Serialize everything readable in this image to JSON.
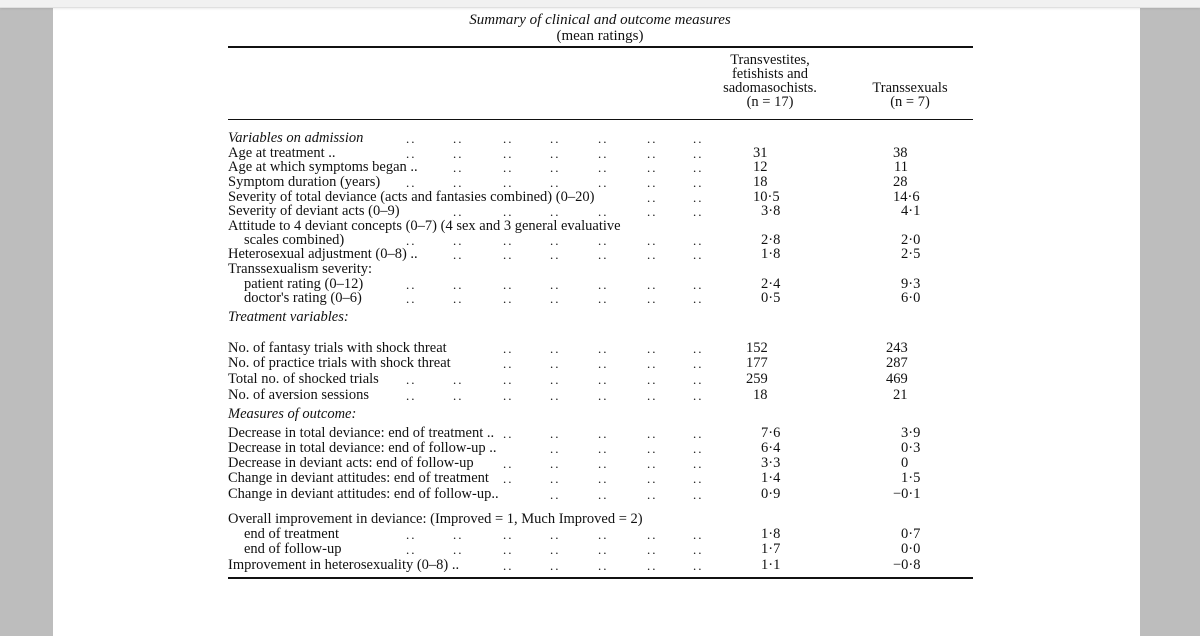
{
  "table": {
    "title": "Summary of clinical and outcome measures",
    "subtitle": "(mean ratings)",
    "columns": [
      {
        "lines": [
          "Transvestites,",
          "fetishists and",
          "sadomasochists.",
          "(n = 17)"
        ]
      },
      {
        "lines": [
          "Transsexuals",
          "(n = 7)"
        ]
      }
    ],
    "rows": [
      {
        "label": "Variables on admission",
        "style": "section",
        "values": [
          "",
          ""
        ]
      },
      {
        "label": "Age at treatment ..",
        "values": [
          "31",
          "38"
        ]
      },
      {
        "label": "Age at which symptoms began ..",
        "values": [
          "12",
          "11"
        ]
      },
      {
        "label": "Symptom duration (years)",
        "values": [
          "18",
          "28"
        ]
      },
      {
        "label": "Severity of total deviance (acts and fantasies combined) (0–20)",
        "values": [
          "10·5",
          "14·6"
        ]
      },
      {
        "label": "Severity of deviant acts (0–9)",
        "values": [
          "3·8",
          "4·1"
        ]
      },
      {
        "label": "Attitude to 4 deviant concepts (0–7) (4 sex and 3 general evaluative",
        "nodots": true,
        "values": [
          "",
          ""
        ]
      },
      {
        "label": "scales combined)",
        "style": "indent",
        "values": [
          "2·8",
          "2·0"
        ]
      },
      {
        "label": "Heterosexual adjustment (0–8) ..",
        "values": [
          "1·8",
          "2·5"
        ]
      },
      {
        "label": "Transsexualism severity:",
        "nodots": true,
        "values": [
          "",
          ""
        ]
      },
      {
        "label": "patient rating (0–12)",
        "style": "indent",
        "values": [
          "2·4",
          "9·3"
        ]
      },
      {
        "label": "doctor's rating (0–6)",
        "style": "indent",
        "values": [
          "0·5",
          "6·0"
        ]
      },
      {
        "label": "Treatment variables:",
        "style": "section",
        "nodots": true,
        "values": [
          "",
          ""
        ]
      },
      {
        "label": "No. of fantasy trials with shock threat",
        "values": [
          "152",
          "243"
        ]
      },
      {
        "label": "No. of practice trials with shock threat",
        "values": [
          "177",
          "287"
        ]
      },
      {
        "label": "Total no. of shocked trials",
        "values": [
          "259",
          "469"
        ]
      },
      {
        "label": "No. of aversion sessions",
        "values": [
          "18",
          "21"
        ]
      },
      {
        "label": "Measures of outcome:",
        "style": "section",
        "nodots": true,
        "values": [
          "",
          ""
        ]
      },
      {
        "label": "Decrease in total deviance: end of treatment ..",
        "values": [
          "7·6",
          "3·9"
        ]
      },
      {
        "label": "Decrease in total deviance: end of follow-up ..",
        "values": [
          "6·4",
          "0·3"
        ]
      },
      {
        "label": "Decrease in deviant acts: end of follow-up",
        "values": [
          "3·3",
          "0"
        ]
      },
      {
        "label": "Change in deviant attitudes: end of treatment",
        "values": [
          "1·4",
          "1·5"
        ]
      },
      {
        "label": "Change in deviant attitudes: end of follow-up..",
        "values": [
          "0·9",
          "−0·1"
        ]
      },
      {
        "label": "Overall improvement in deviance: (Improved = 1, Much Improved = 2)",
        "nodots": true,
        "values": [
          "",
          ""
        ]
      },
      {
        "label": "end of treatment",
        "style": "indent",
        "values": [
          "1·8",
          "0·7"
        ]
      },
      {
        "label": "end of follow-up",
        "style": "indent",
        "values": [
          "1·7",
          "0·0"
        ]
      },
      {
        "label": "Improvement in heterosexuality (0–8) ..",
        "values": [
          "1·1",
          "−0·8"
        ]
      }
    ]
  }
}
